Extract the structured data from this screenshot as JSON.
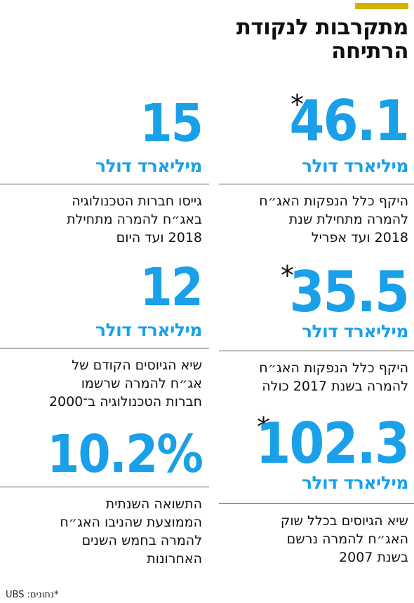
{
  "title": {
    "line1": "מתקרבות לנקודת",
    "line2": "הרתיחה"
  },
  "colors": {
    "accent": "#d5b100",
    "value": "#1aa0e8",
    "text": "#111111"
  },
  "right_column": [
    {
      "value": "46.1",
      "star": "*",
      "unit": "מיליארד  דולר",
      "desc": [
        "היקף כלל הנפקות האג״ח",
        "להמרה מתחילת שנת",
        "2018 ועד אפריל"
      ]
    },
    {
      "value": "35.5",
      "star": "*",
      "unit": "מיליארד דולר",
      "desc": [
        "היקף כלל הנפקות האג״ח",
        "להמרה בשנת 2017 כולה"
      ]
    },
    {
      "value": "102.3",
      "star": "*",
      "unit": "מיליארד דולר",
      "desc": [
        "שיא הגיוסים בכלל שוק",
        "האג״ח להמרה נרשם",
        "בשנת 2007"
      ]
    }
  ],
  "left_column": [
    {
      "value": "15",
      "unit": "מיליארד דולר",
      "desc": [
        "גייסו חברות הטכנולוגיה",
        "באג״ח להמרה מתחילת",
        "2018 ועד היום"
      ]
    },
    {
      "value": "12",
      "unit": "מיליארד דולר",
      "desc": [
        "שיא הגיוסים הקודם של",
        "אג״ח להמרה שרשמו",
        "חברות הטכנולוגיה ב־2000"
      ]
    },
    {
      "value": "10.2%",
      "unit": "",
      "desc": [
        "התשואה השנתית",
        "הממוצעת שהניבו האג״ח",
        "להמרה בחמש השנים",
        "האחרונות"
      ]
    }
  ],
  "footer": "*נתונים: UBS"
}
